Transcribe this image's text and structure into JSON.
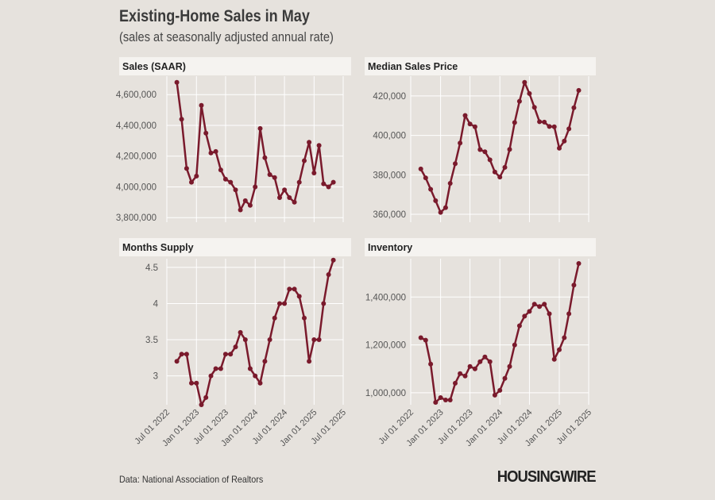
{
  "header": {
    "title": "Existing-Home Sales in May",
    "subtitle": "(sales at seasonally adjusted annual rate)"
  },
  "footer": {
    "source": "Data: National Association of Realtors",
    "logo": "HOUSINGWIRE"
  },
  "colors": {
    "line": "#7a1a2c",
    "panel_header_bg": "#f5f3f0",
    "grid": "#ffffff",
    "background": "#e6e2dd"
  },
  "x_tick_labels": [
    "Jul 01 2022",
    "Jan 01 2023",
    "Jul 01 2023",
    "Jan 01 2024",
    "Jul 01 2024",
    "Jan 01 2025",
    "Jul 01 2025"
  ],
  "chart_data": [
    {
      "type": "line",
      "title": "Sales (SAAR)",
      "x": [
        "2022-09-01",
        "2022-10-01",
        "2022-11-01",
        "2022-12-01",
        "2023-01-01",
        "2023-02-01",
        "2023-03-01",
        "2023-04-01",
        "2023-05-01",
        "2023-06-01",
        "2023-07-01",
        "2023-08-01",
        "2023-09-01",
        "2023-10-01",
        "2023-11-01",
        "2023-12-01",
        "2024-01-01",
        "2024-02-01",
        "2024-03-01",
        "2024-04-01",
        "2024-05-01",
        "2024-06-01",
        "2024-07-01",
        "2024-08-01",
        "2024-09-01",
        "2024-10-01",
        "2024-11-01",
        "2024-12-01",
        "2025-01-01",
        "2025-02-01",
        "2025-03-01",
        "2025-04-01",
        "2025-05-01"
      ],
      "series": [
        {
          "values": [
            4680000,
            4440000,
            4120000,
            4030000,
            4070000,
            4530000,
            4350000,
            4220000,
            4230000,
            4110000,
            4050000,
            4030000,
            3980000,
            3850000,
            3910000,
            3880000,
            4000000,
            4380000,
            4190000,
            4080000,
            4060000,
            3930000,
            3980000,
            3930000,
            3900000,
            4030000,
            4170000,
            4290000,
            4090000,
            4270000,
            4020000,
            4000000,
            4030000
          ]
        }
      ],
      "y_ticks": [
        3800000,
        4000000,
        4200000,
        4400000,
        4600000
      ],
      "y_tick_labels": [
        "3,800,000",
        "4,000,000",
        "4,200,000",
        "4,400,000",
        "4,600,000"
      ],
      "ylim": [
        3770000,
        4720000
      ]
    },
    {
      "type": "line",
      "title": "Median Sales Price",
      "x": [
        "2022-09-01",
        "2022-10-01",
        "2022-11-01",
        "2022-12-01",
        "2023-01-01",
        "2023-02-01",
        "2023-03-01",
        "2023-04-01",
        "2023-05-01",
        "2023-06-01",
        "2023-07-01",
        "2023-08-01",
        "2023-09-01",
        "2023-10-01",
        "2023-11-01",
        "2023-12-01",
        "2024-01-01",
        "2024-02-01",
        "2024-03-01",
        "2024-04-01",
        "2024-05-01",
        "2024-06-01",
        "2024-07-01",
        "2024-08-01",
        "2024-09-01",
        "2024-10-01",
        "2024-11-01",
        "2024-12-01",
        "2025-01-01",
        "2025-02-01",
        "2025-03-01",
        "2025-04-01",
        "2025-05-01"
      ],
      "series": [
        {
          "values": [
            383000,
            378500,
            372700,
            366900,
            361000,
            363400,
            375700,
            385700,
            396100,
            410100,
            405800,
            404400,
            392800,
            391700,
            387600,
            381400,
            378900,
            383800,
            392900,
            406500,
            417300,
            426900,
            421200,
            414200,
            406900,
            406700,
            404500,
            404400,
            393500,
            397100,
            403300,
            414000,
            422800
          ]
        }
      ],
      "y_ticks": [
        360000,
        380000,
        400000,
        420000
      ],
      "y_tick_labels": [
        "360,000",
        "380,000",
        "400,000",
        "420,000"
      ],
      "ylim": [
        356000,
        430000
      ]
    },
    {
      "type": "line",
      "title": "Months Supply",
      "x": [
        "2022-09-01",
        "2022-10-01",
        "2022-11-01",
        "2022-12-01",
        "2023-01-01",
        "2023-02-01",
        "2023-03-01",
        "2023-04-01",
        "2023-05-01",
        "2023-06-01",
        "2023-07-01",
        "2023-08-01",
        "2023-09-01",
        "2023-10-01",
        "2023-11-01",
        "2023-12-01",
        "2024-01-01",
        "2024-02-01",
        "2024-03-01",
        "2024-04-01",
        "2024-05-01",
        "2024-06-01",
        "2024-07-01",
        "2024-08-01",
        "2024-09-01",
        "2024-10-01",
        "2024-11-01",
        "2024-12-01",
        "2025-01-01",
        "2025-02-01",
        "2025-03-01",
        "2025-04-01",
        "2025-05-01"
      ],
      "series": [
        {
          "values": [
            3.2,
            3.3,
            3.3,
            2.9,
            2.9,
            2.6,
            2.7,
            3.0,
            3.1,
            3.1,
            3.3,
            3.3,
            3.4,
            3.6,
            3.5,
            3.1,
            3.0,
            2.9,
            3.2,
            3.5,
            3.8,
            4.0,
            4.0,
            4.2,
            4.2,
            4.1,
            3.8,
            3.2,
            3.5,
            3.5,
            4.0,
            4.4,
            4.6
          ]
        }
      ],
      "y_ticks": [
        3,
        3.5,
        4,
        4.5
      ],
      "y_tick_labels": [
        "3",
        "3.5",
        "4",
        "4.5"
      ],
      "ylim": [
        2.6,
        4.62
      ]
    },
    {
      "type": "line",
      "title": "Inventory",
      "x": [
        "2022-09-01",
        "2022-10-01",
        "2022-11-01",
        "2022-12-01",
        "2023-01-01",
        "2023-02-01",
        "2023-03-01",
        "2023-04-01",
        "2023-05-01",
        "2023-06-01",
        "2023-07-01",
        "2023-08-01",
        "2023-09-01",
        "2023-10-01",
        "2023-11-01",
        "2023-12-01",
        "2024-01-01",
        "2024-02-01",
        "2024-03-01",
        "2024-04-01",
        "2024-05-01",
        "2024-06-01",
        "2024-07-01",
        "2024-08-01",
        "2024-09-01",
        "2024-10-01",
        "2024-11-01",
        "2024-12-01",
        "2025-01-01",
        "2025-02-01",
        "2025-03-01",
        "2025-04-01",
        "2025-05-01"
      ],
      "series": [
        {
          "values": [
            1230000,
            1220000,
            1120000,
            960000,
            980000,
            970000,
            970000,
            1040000,
            1080000,
            1070000,
            1110000,
            1100000,
            1130000,
            1150000,
            1130000,
            990000,
            1010000,
            1060000,
            1110000,
            1200000,
            1280000,
            1320000,
            1340000,
            1370000,
            1360000,
            1370000,
            1330000,
            1140000,
            1180000,
            1230000,
            1330000,
            1450000,
            1540000
          ]
        }
      ],
      "y_ticks": [
        1000000,
        1200000,
        1400000
      ],
      "y_tick_labels": [
        "1,000,000",
        "1,200,000",
        "1,400,000"
      ],
      "ylim": [
        950000,
        1560000
      ]
    }
  ]
}
